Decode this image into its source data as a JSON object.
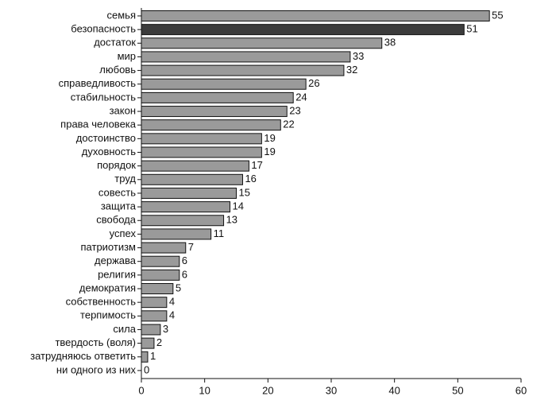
{
  "chart_data": {
    "type": "barh",
    "categories": [
      "семья",
      "безопасность",
      "достаток",
      "мир",
      "любовь",
      "справедливость",
      "стабильность",
      "закон",
      "права человека",
      "достоинство",
      "духовность",
      "порядок",
      "труд",
      "совесть",
      "защита",
      "свобода",
      "успех",
      "патриотизм",
      "держава",
      "религия",
      "демократия",
      "собственность",
      "терпимость",
      "сила",
      "твердость (воля)",
      "затрудняюсь ответить",
      "ни одного из них"
    ],
    "values": [
      55,
      51,
      38,
      33,
      32,
      26,
      24,
      23,
      22,
      19,
      19,
      17,
      16,
      15,
      14,
      13,
      11,
      7,
      6,
      6,
      5,
      4,
      4,
      3,
      2,
      1,
      0
    ],
    "colors": [
      "#9a9a9a",
      "#3c3c3c",
      "#9a9a9a",
      "#9a9a9a",
      "#9a9a9a",
      "#9a9a9a",
      "#9a9a9a",
      "#9a9a9a",
      "#9a9a9a",
      "#9a9a9a",
      "#9a9a9a",
      "#9a9a9a",
      "#9a9a9a",
      "#9a9a9a",
      "#9a9a9a",
      "#9a9a9a",
      "#9a9a9a",
      "#9a9a9a",
      "#9a9a9a",
      "#9a9a9a",
      "#9a9a9a",
      "#9a9a9a",
      "#9a9a9a",
      "#9a9a9a",
      "#9a9a9a",
      "#9a9a9a",
      "#9a9a9a"
    ],
    "xlim": [
      0,
      60
    ],
    "xticks": [
      0,
      10,
      20,
      30,
      40,
      50,
      60
    ]
  }
}
